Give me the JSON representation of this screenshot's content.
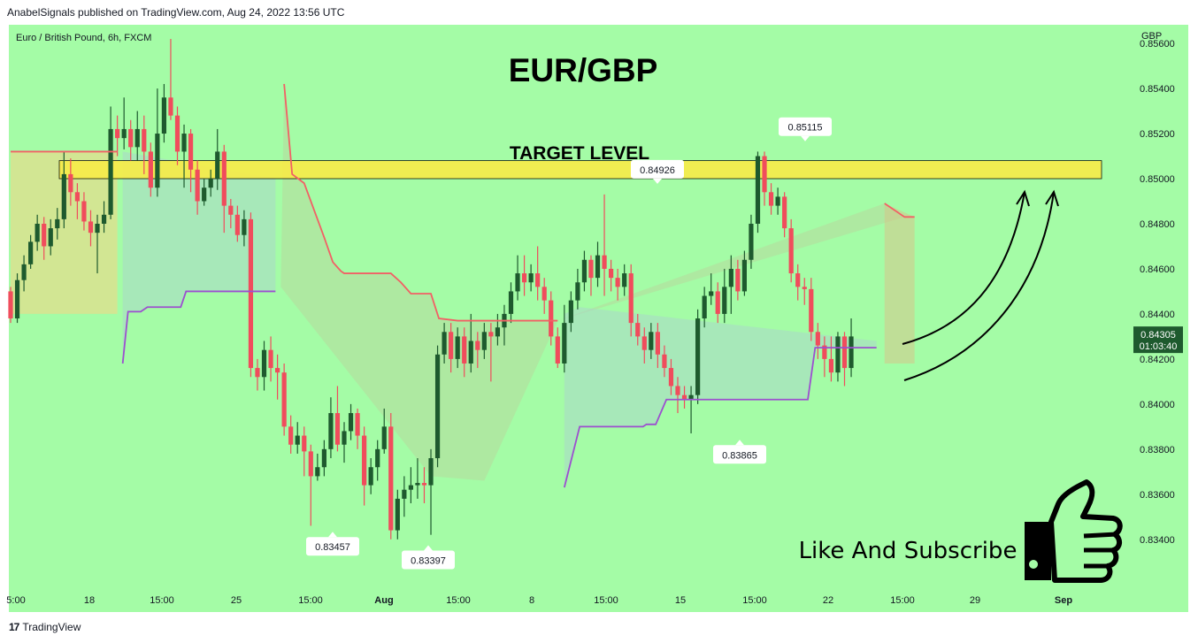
{
  "header": {
    "published_line": "AnabelSignals published on TradingView.com, Aug 24, 2022 13:56 UTC"
  },
  "footer": {
    "logo_glyph": "17",
    "brand": "TradingView"
  },
  "colors": {
    "background": "#a4fca6",
    "up_candle": "#1e5a2e",
    "down_candle": "#f04c5c",
    "resistance_line": "#f26065",
    "support_line": "#9c4fcf",
    "target_zone": "#f7ec4a",
    "price_tag": "#1e5a2e"
  },
  "chart_data": {
    "type": "candlestick",
    "symbol_line": "Euro / British Pound, 6h, FXCM",
    "title": "EUR/GBP",
    "currency_label": "GBP",
    "y_range": [
      0.8325,
      0.8562
    ],
    "y_ticks": [
      "0.85600",
      "0.85400",
      "0.85200",
      "0.85000",
      "0.84800",
      "0.84600",
      "0.84400",
      "0.84200",
      "0.84000",
      "0.83800",
      "0.83600",
      "0.83400"
    ],
    "x_ticks": [
      "5:00",
      "18",
      "15:00",
      "25",
      "15:00",
      "Aug",
      "15:00",
      "8",
      "15:00",
      "15",
      "15:00",
      "22",
      "15:00",
      "29",
      "Sep"
    ],
    "target_zone": {
      "label": "TARGET LEVEL",
      "from": 0.85,
      "to": 0.8508
    },
    "price_labels": [
      {
        "text": "0.85115",
        "value": 0.85115,
        "position": "above"
      },
      {
        "text": "0.84926",
        "value": 0.84926,
        "position": "above"
      },
      {
        "text": "0.83865",
        "value": 0.83865,
        "position": "below"
      },
      {
        "text": "0.83457",
        "value": 0.83457,
        "position": "below"
      },
      {
        "text": "0.83397",
        "value": 0.83397,
        "position": "below"
      }
    ],
    "last_price": {
      "price": "0.84305",
      "countdown": "01:03:40",
      "value": 0.84305
    },
    "annotation": "Like And Subscribe",
    "candles": [
      [
        0.845,
        0.8438,
        0.8452,
        0.8436
      ],
      [
        0.8438,
        0.8455,
        0.8458,
        0.8436
      ],
      [
        0.8455,
        0.8462,
        0.8466,
        0.845
      ],
      [
        0.8462,
        0.8472,
        0.8475,
        0.846
      ],
      [
        0.8472,
        0.848,
        0.8484,
        0.8468
      ],
      [
        0.848,
        0.847,
        0.8483,
        0.8464
      ],
      [
        0.847,
        0.8478,
        0.8482,
        0.8466
      ],
      [
        0.8478,
        0.8482,
        0.8487,
        0.8473
      ],
      [
        0.8482,
        0.8502,
        0.8512,
        0.8478
      ],
      [
        0.8502,
        0.8494,
        0.8509,
        0.8488
      ],
      [
        0.8494,
        0.849,
        0.8498,
        0.8482
      ],
      [
        0.849,
        0.8481,
        0.8494,
        0.8477
      ],
      [
        0.8481,
        0.8476,
        0.8486,
        0.847
      ],
      [
        0.8476,
        0.848,
        0.8484,
        0.8458
      ],
      [
        0.848,
        0.8484,
        0.849,
        0.8476
      ],
      [
        0.8484,
        0.8522,
        0.8532,
        0.8482
      ],
      [
        0.8522,
        0.8518,
        0.8528,
        0.851
      ],
      [
        0.8518,
        0.8522,
        0.8536,
        0.8513
      ],
      [
        0.8522,
        0.8514,
        0.8526,
        0.8508
      ],
      [
        0.8514,
        0.8522,
        0.853,
        0.8508
      ],
      [
        0.8522,
        0.8512,
        0.8528,
        0.8502
      ],
      [
        0.8512,
        0.8496,
        0.8516,
        0.8492
      ],
      [
        0.8496,
        0.852,
        0.854,
        0.8492
      ],
      [
        0.852,
        0.8536,
        0.8542,
        0.8516
      ],
      [
        0.8536,
        0.8528,
        0.8562,
        0.8526
      ],
      [
        0.8528,
        0.8512,
        0.8532,
        0.8506
      ],
      [
        0.8512,
        0.852,
        0.8524,
        0.8496
      ],
      [
        0.852,
        0.8504,
        0.8522,
        0.8494
      ],
      [
        0.8504,
        0.849,
        0.8508,
        0.8484
      ],
      [
        0.849,
        0.8496,
        0.85,
        0.8488
      ],
      [
        0.8496,
        0.85,
        0.8504,
        0.8492
      ],
      [
        0.85,
        0.8512,
        0.8522,
        0.8495
      ],
      [
        0.8512,
        0.8488,
        0.8515,
        0.8476
      ],
      [
        0.8488,
        0.8484,
        0.8491,
        0.8478
      ],
      [
        0.8484,
        0.8475,
        0.8488,
        0.8472
      ],
      [
        0.8475,
        0.8482,
        0.8486,
        0.847
      ],
      [
        0.8482,
        0.8416,
        0.8485,
        0.8412
      ],
      [
        0.8416,
        0.8412,
        0.842,
        0.8406
      ],
      [
        0.8412,
        0.8424,
        0.8428,
        0.8406
      ],
      [
        0.8424,
        0.8416,
        0.843,
        0.841
      ],
      [
        0.8416,
        0.8414,
        0.8422,
        0.8402
      ],
      [
        0.8414,
        0.839,
        0.8418,
        0.8386
      ],
      [
        0.839,
        0.8382,
        0.8395,
        0.8378
      ],
      [
        0.8382,
        0.8386,
        0.8392,
        0.8378
      ],
      [
        0.8386,
        0.8379,
        0.839,
        0.8368
      ],
      [
        0.8379,
        0.8368,
        0.8382,
        0.8346
      ],
      [
        0.8368,
        0.8372,
        0.8378,
        0.8366
      ],
      [
        0.8372,
        0.838,
        0.8384,
        0.8368
      ],
      [
        0.838,
        0.8396,
        0.8403,
        0.8376
      ],
      [
        0.8396,
        0.8382,
        0.8408,
        0.8379
      ],
      [
        0.8382,
        0.8388,
        0.8392,
        0.8374
      ],
      [
        0.8388,
        0.8396,
        0.84,
        0.8384
      ],
      [
        0.8396,
        0.8386,
        0.8398,
        0.838
      ],
      [
        0.8386,
        0.8364,
        0.839,
        0.8355
      ],
      [
        0.8364,
        0.8372,
        0.8376,
        0.836
      ],
      [
        0.8372,
        0.838,
        0.8384,
        0.8366
      ],
      [
        0.838,
        0.839,
        0.8398,
        0.8378
      ],
      [
        0.839,
        0.8344,
        0.8396,
        0.834
      ],
      [
        0.8344,
        0.8358,
        0.8362,
        0.834
      ],
      [
        0.8358,
        0.8362,
        0.8368,
        0.835
      ],
      [
        0.8362,
        0.8364,
        0.8372,
        0.8356
      ],
      [
        0.8364,
        0.8365,
        0.8376,
        0.8358
      ],
      [
        0.8365,
        0.8364,
        0.8372,
        0.8356
      ],
      [
        0.8364,
        0.8376,
        0.838,
        0.8342
      ],
      [
        0.8376,
        0.8422,
        0.8426,
        0.8372
      ],
      [
        0.8422,
        0.8432,
        0.8436,
        0.8418
      ],
      [
        0.8432,
        0.842,
        0.8436,
        0.8414
      ],
      [
        0.842,
        0.843,
        0.8434,
        0.8416
      ],
      [
        0.843,
        0.8418,
        0.8434,
        0.8412
      ],
      [
        0.8418,
        0.8428,
        0.844,
        0.8414
      ],
      [
        0.8428,
        0.8424,
        0.8432,
        0.8416
      ],
      [
        0.8424,
        0.8432,
        0.8436,
        0.842
      ],
      [
        0.8432,
        0.843,
        0.8436,
        0.841
      ],
      [
        0.843,
        0.8434,
        0.844,
        0.8426
      ],
      [
        0.8434,
        0.844,
        0.8444,
        0.8426
      ],
      [
        0.844,
        0.845,
        0.8454,
        0.8436
      ],
      [
        0.845,
        0.8458,
        0.8466,
        0.8446
      ],
      [
        0.8458,
        0.8454,
        0.8466,
        0.8448
      ],
      [
        0.8454,
        0.8458,
        0.8462,
        0.845
      ],
      [
        0.8458,
        0.8452,
        0.847,
        0.8446
      ],
      [
        0.8452,
        0.8446,
        0.8456,
        0.844
      ],
      [
        0.8446,
        0.843,
        0.845,
        0.8426
      ],
      [
        0.843,
        0.8418,
        0.8434,
        0.8416
      ],
      [
        0.8418,
        0.8436,
        0.8444,
        0.8414
      ],
      [
        0.8436,
        0.8446,
        0.845,
        0.8432
      ],
      [
        0.8446,
        0.8454,
        0.846,
        0.8442
      ],
      [
        0.8454,
        0.8464,
        0.8468,
        0.845
      ],
      [
        0.8464,
        0.8456,
        0.8466,
        0.8448
      ],
      [
        0.8456,
        0.8466,
        0.8472,
        0.8452
      ],
      [
        0.8466,
        0.846,
        0.8493,
        0.8448
      ],
      [
        0.846,
        0.8456,
        0.8464,
        0.845
      ],
      [
        0.8456,
        0.8452,
        0.846,
        0.8446
      ],
      [
        0.8452,
        0.8458,
        0.8462,
        0.8448
      ],
      [
        0.8458,
        0.8436,
        0.8462,
        0.843
      ],
      [
        0.8436,
        0.843,
        0.844,
        0.8426
      ],
      [
        0.843,
        0.8424,
        0.8434,
        0.8418
      ],
      [
        0.8424,
        0.8432,
        0.8436,
        0.842
      ],
      [
        0.8432,
        0.8422,
        0.8436,
        0.8416
      ],
      [
        0.8422,
        0.8416,
        0.8426,
        0.8412
      ],
      [
        0.8416,
        0.8408,
        0.842,
        0.8404
      ],
      [
        0.8408,
        0.8404,
        0.8412,
        0.8396
      ],
      [
        0.8404,
        0.8402,
        0.8408,
        0.8398
      ],
      [
        0.8402,
        0.8404,
        0.8408,
        0.8387
      ],
      [
        0.8404,
        0.8438,
        0.8442,
        0.84
      ],
      [
        0.8438,
        0.8448,
        0.8452,
        0.8434
      ],
      [
        0.8448,
        0.845,
        0.8458,
        0.8444
      ],
      [
        0.845,
        0.844,
        0.8454,
        0.8436
      ],
      [
        0.844,
        0.8452,
        0.846,
        0.8436
      ],
      [
        0.8452,
        0.846,
        0.8466,
        0.844
      ],
      [
        0.846,
        0.845,
        0.8464,
        0.8446
      ],
      [
        0.845,
        0.8464,
        0.8468,
        0.8448
      ],
      [
        0.8464,
        0.848,
        0.8484,
        0.846
      ],
      [
        0.848,
        0.851,
        0.8512,
        0.8476
      ],
      [
        0.851,
        0.8494,
        0.8512,
        0.8488
      ],
      [
        0.8494,
        0.8488,
        0.8498,
        0.8484
      ],
      [
        0.8488,
        0.8492,
        0.8496,
        0.8484
      ],
      [
        0.8492,
        0.8478,
        0.8494,
        0.8474
      ],
      [
        0.8478,
        0.8458,
        0.8482,
        0.8454
      ],
      [
        0.8458,
        0.8452,
        0.8462,
        0.8446
      ],
      [
        0.8452,
        0.8451,
        0.8456,
        0.8444
      ],
      [
        0.8451,
        0.8432,
        0.8456,
        0.8428
      ],
      [
        0.8432,
        0.8426,
        0.8436,
        0.842
      ],
      [
        0.8426,
        0.842,
        0.843,
        0.8412
      ],
      [
        0.842,
        0.8414,
        0.843,
        0.841
      ],
      [
        0.8414,
        0.843,
        0.8432,
        0.841
      ],
      [
        0.843,
        0.8416,
        0.8432,
        0.8408
      ],
      [
        0.8416,
        0.843,
        0.8438,
        0.8412
      ]
    ],
    "resistance_line": [
      {
        "x": 0,
        "y": 0.8512
      },
      {
        "x": 16,
        "y": 0.8512
      },
      {
        "x": 41,
        "y": 0.8542
      },
      {
        "x": 42.2,
        "y": 0.8502
      },
      {
        "x": 44,
        "y": 0.8498
      },
      {
        "x": 47,
        "y": 0.8474
      },
      {
        "x": 48.3,
        "y": 0.8463
      },
      {
        "x": 49.5,
        "y": 0.8459
      },
      {
        "x": 50,
        "y": 0.8458
      },
      {
        "x": 57,
        "y": 0.8458
      },
      {
        "x": 58.5,
        "y": 0.8454
      },
      {
        "x": 60,
        "y": 0.8449
      },
      {
        "x": 63,
        "y": 0.8449
      },
      {
        "x": 64.2,
        "y": 0.8438
      },
      {
        "x": 67,
        "y": 0.8437
      },
      {
        "x": 82,
        "y": 0.8437
      },
      {
        "x": 131,
        "y": 0.8489
      },
      {
        "x": 134,
        "y": 0.8483
      },
      {
        "x": 135.5,
        "y": 0.8483
      }
    ],
    "support_line": [
      {
        "x": 16.8,
        "y": 0.8418
      },
      {
        "x": 17.6,
        "y": 0.8441
      },
      {
        "x": 19.5,
        "y": 0.8441
      },
      {
        "x": 20.5,
        "y": 0.8443
      },
      {
        "x": 25.5,
        "y": 0.8443
      },
      {
        "x": 26.3,
        "y": 0.845
      },
      {
        "x": 39.7,
        "y": 0.845
      },
      {
        "x": 83,
        "y": 0.8363
      },
      {
        "x": 85.3,
        "y": 0.839
      },
      {
        "x": 94.8,
        "y": 0.839
      },
      {
        "x": 95.3,
        "y": 0.8391
      },
      {
        "x": 96.7,
        "y": 0.8391
      },
      {
        "x": 98.3,
        "y": 0.8402
      },
      {
        "x": 119.5,
        "y": 0.8402
      },
      {
        "x": 120.6,
        "y": 0.8425
      },
      {
        "x": 129.8,
        "y": 0.8425
      }
    ]
  }
}
